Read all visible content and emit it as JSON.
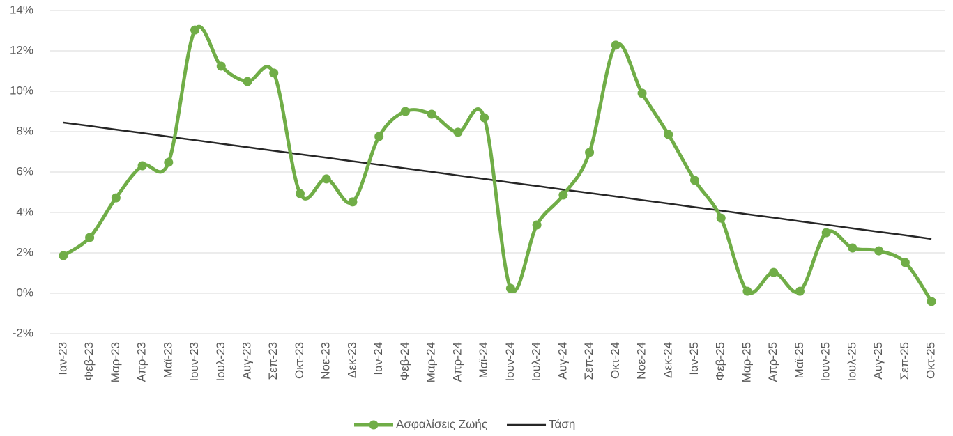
{
  "chart_data": {
    "type": "line",
    "categories": [
      "Ιαν-23",
      "Φεβ-23",
      "Μαρ-23",
      "Απρ-23",
      "Μαϊ-23",
      "Ιουν-23",
      "Ιουλ-23",
      "Αυγ-23",
      "Σεπ-23",
      "Οκτ-23",
      "Νοε-23",
      "Δεκ-23",
      "Ιαν-24",
      "Φεβ-24",
      "Μαρ-24",
      "Απρ-24",
      "Μαϊ-24",
      "Ιουν-24",
      "Ιουλ-24",
      "Αυγ-24",
      "Σεπ-24",
      "Οκτ-24",
      "Νοε-24",
      "Δεκ-24",
      "Ιαν-25",
      "Φεβ-25",
      "Μαρ-25",
      "Απρ-25",
      "Μαϊ-25",
      "Ιουν-25",
      "Ιουλ-25",
      "Αυγ-25",
      "Σεπ-25",
      "Οκτ-25"
    ],
    "series": [
      {
        "name": "Ασφαλίσεις Ζωής",
        "color": "#70ad47",
        "smooth": true,
        "markers": true,
        "values": [
          1.86,
          2.76,
          4.72,
          6.31,
          6.48,
          13.03,
          11.24,
          10.48,
          10.9,
          4.93,
          5.66,
          4.52,
          7.76,
          9.0,
          8.86,
          7.97,
          8.69,
          0.24,
          3.38,
          4.86,
          6.97,
          12.28,
          9.9,
          7.86,
          5.59,
          3.72,
          0.1,
          1.03,
          0.1,
          3.0,
          2.24,
          2.1,
          1.52,
          -0.41
        ]
      },
      {
        "name": "Τάση",
        "color": "#262626",
        "smooth": false,
        "markers": false,
        "values": [
          8.45,
          8.28,
          8.1,
          7.93,
          7.75,
          7.58,
          7.4,
          7.23,
          7.05,
          6.88,
          6.71,
          6.53,
          6.36,
          6.18,
          6.01,
          5.83,
          5.66,
          5.48,
          5.31,
          5.13,
          4.96,
          4.79,
          4.61,
          4.44,
          4.26,
          4.09,
          3.91,
          3.74,
          3.56,
          3.39,
          3.21,
          3.04,
          2.87,
          2.69
        ]
      }
    ],
    "ylim": [
      -2,
      14
    ],
    "yticks": [
      {
        "value": -2,
        "label": "-2%"
      },
      {
        "value": 0,
        "label": "0%"
      },
      {
        "value": 2,
        "label": "2%"
      },
      {
        "value": 4,
        "label": "4%"
      },
      {
        "value": 6,
        "label": "6%"
      },
      {
        "value": 8,
        "label": "8%"
      },
      {
        "value": 10,
        "label": "10%"
      },
      {
        "value": 12,
        "label": "12%"
      },
      {
        "value": 14,
        "label": "14%"
      }
    ],
    "grid": true,
    "legend": "bottom"
  }
}
